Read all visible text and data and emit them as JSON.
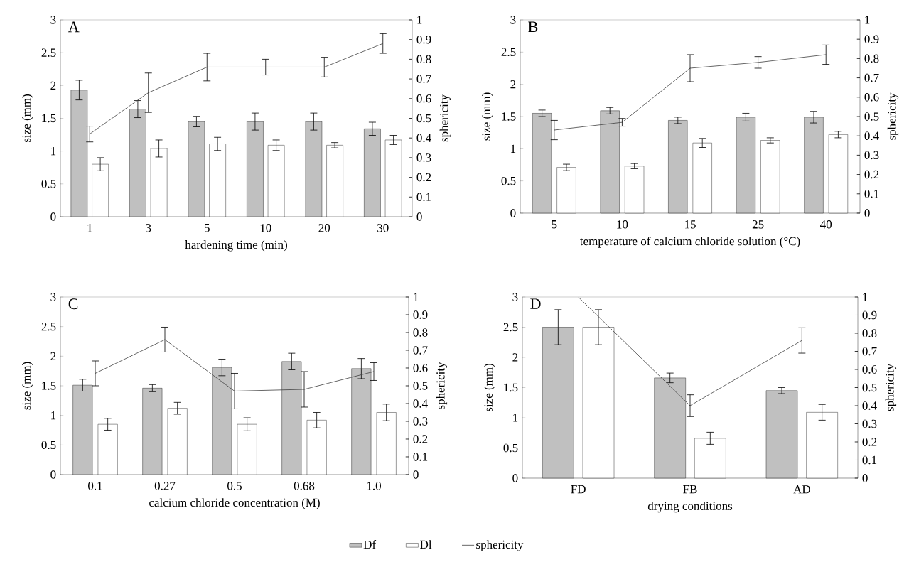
{
  "chart_data": [
    {
      "type": "bar",
      "title": "A",
      "xlabel": "hardening time (min)",
      "ylabel": "size (mm)",
      "y2label": "sphericity",
      "categories": [
        "1",
        "3",
        "5",
        "10",
        "20",
        "30"
      ],
      "ylim": [
        0,
        3
      ],
      "yticks": [
        0,
        0.5,
        1,
        1.5,
        2,
        2.5,
        3
      ],
      "y2lim": [
        0,
        1
      ],
      "y2ticks": [
        0,
        0.1,
        0.2,
        0.3,
        0.4,
        0.5,
        0.6,
        0.7,
        0.8,
        0.9,
        1
      ],
      "marker": "none",
      "series": [
        {
          "color": "#c0c0c0",
          "values": [
            1.93,
            1.64,
            1.45,
            1.45,
            1.45,
            1.34
          ],
          "errors": [
            0.15,
            0.13,
            0.08,
            0.13,
            0.13,
            0.1
          ]
        },
        {
          "color": "#ffffff",
          "values": [
            0.8,
            1.04,
            1.11,
            1.09,
            1.09,
            1.17
          ],
          "errors": [
            0.1,
            0.13,
            0.1,
            0.08,
            0.04,
            0.07
          ]
        },
        {
          "type": "line",
          "axis": "y2",
          "color": "#404040",
          "values": [
            0.42,
            0.63,
            0.76,
            0.76,
            0.76,
            0.88
          ],
          "errors": [
            0.04,
            0.1,
            0.07,
            0.04,
            0.05,
            0.05
          ]
        }
      ]
    },
    {
      "type": "bar",
      "title": "B",
      "xlabel": "temperature of calcium chloride solution (°C)",
      "ylabel": "size (mm)",
      "y2label": "sphericity",
      "categories": [
        "5",
        "10",
        "15",
        "25",
        "40"
      ],
      "ylim": [
        0,
        3
      ],
      "yticks": [
        0,
        0.5,
        1,
        1.5,
        2,
        2.5,
        3
      ],
      "y2lim": [
        0,
        1
      ],
      "y2ticks": [
        0,
        0.1,
        0.2,
        0.3,
        0.4,
        0.5,
        0.6,
        0.7,
        0.8,
        0.9,
        1
      ],
      "marker": "none",
      "series": [
        {
          "color": "#c0c0c0",
          "values": [
            1.55,
            1.59,
            1.44,
            1.49,
            1.49
          ],
          "errors": [
            0.05,
            0.05,
            0.05,
            0.06,
            0.09
          ]
        },
        {
          "color": "#ffffff",
          "values": [
            0.71,
            0.73,
            1.09,
            1.13,
            1.22
          ],
          "errors": [
            0.05,
            0.04,
            0.07,
            0.04,
            0.05
          ]
        },
        {
          "type": "line",
          "axis": "y2",
          "color": "#404040",
          "values": [
            0.43,
            0.47,
            0.75,
            0.78,
            0.82
          ],
          "errors": [
            0.05,
            0.02,
            0.07,
            0.03,
            0.05
          ]
        }
      ]
    },
    {
      "type": "bar",
      "title": "C",
      "xlabel": "calcium chloride concentration (M)",
      "ylabel": "size (mm)",
      "y2label": "sphericity",
      "categories": [
        "0.1",
        "0.27",
        "0.5",
        "0.68",
        "1.0"
      ],
      "ylim": [
        0,
        3
      ],
      "yticks": [
        0,
        0.5,
        1,
        1.5,
        2,
        2.5,
        3
      ],
      "y2lim": [
        0,
        1
      ],
      "y2ticks": [
        0,
        0.1,
        0.2,
        0.3,
        0.4,
        0.5,
        0.6,
        0.7,
        0.8,
        0.9,
        1
      ],
      "marker": "none",
      "series": [
        {
          "color": "#c0c0c0",
          "values": [
            1.51,
            1.46,
            1.81,
            1.91,
            1.79
          ],
          "errors": [
            0.1,
            0.06,
            0.14,
            0.14,
            0.17
          ]
        },
        {
          "color": "#ffffff",
          "values": [
            0.85,
            1.12,
            0.85,
            0.92,
            1.05
          ],
          "errors": [
            0.1,
            0.1,
            0.11,
            0.13,
            0.14
          ]
        },
        {
          "type": "line",
          "axis": "y2",
          "color": "#404040",
          "values": [
            0.57,
            0.76,
            0.47,
            0.48,
            0.58
          ],
          "errors": [
            0.07,
            0.07,
            0.1,
            0.1,
            0.05
          ]
        }
      ]
    },
    {
      "type": "bar",
      "title": "D",
      "xlabel": "drying conditions",
      "ylabel": "size (mm)",
      "y2label": "sphericity",
      "categories": [
        "FD",
        "FB",
        "AD"
      ],
      "ylim": [
        0,
        3
      ],
      "yticks": [
        0,
        0.5,
        1,
        1.5,
        2,
        2.5,
        3
      ],
      "y2lim": [
        0,
        1
      ],
      "y2ticks": [
        0,
        0.1,
        0.2,
        0.3,
        0.4,
        0.5,
        0.6,
        0.7,
        0.8,
        0.9,
        1
      ],
      "marker": "none",
      "legend": "bottom",
      "series": [
        {
          "name": "Df",
          "color": "#c0c0c0",
          "values": [
            2.5,
            1.66,
            1.45
          ],
          "errors": [
            0.29,
            0.08,
            0.05
          ]
        },
        {
          "name": "Dl",
          "color": "#ffffff",
          "values": [
            2.5,
            0.66,
            1.09
          ],
          "errors": [
            0.29,
            0.1,
            0.13
          ]
        },
        {
          "name": "sphericity",
          "type": "line",
          "axis": "y2",
          "color": "#404040",
          "values": [
            1.0,
            0.4,
            0.76
          ],
          "errors": [
            null,
            0.06,
            0.07
          ]
        }
      ]
    }
  ]
}
